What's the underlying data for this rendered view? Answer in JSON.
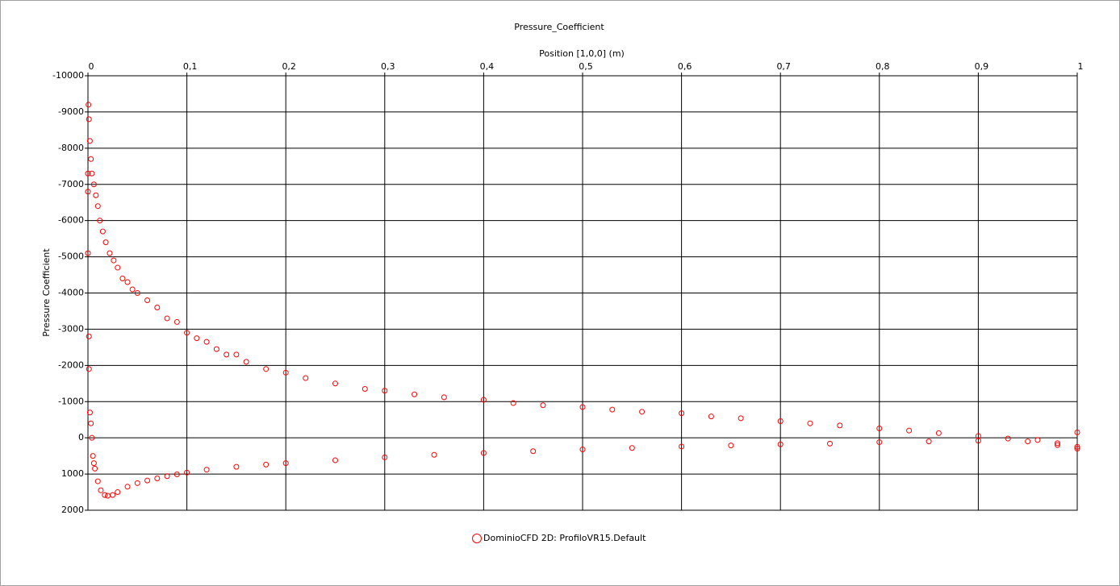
{
  "chart_data": {
    "type": "scatter",
    "title": "Pressure_Coefficient",
    "x_label": "Position [1,0,0] (m)",
    "y_label": "Pressure Coefficient",
    "xlim": [
      0,
      1
    ],
    "xticks": [
      0,
      {
        "value": 0.1,
        "label": "0,1"
      },
      {
        "value": 0.2,
        "label": "0,2"
      },
      {
        "value": 0.3,
        "label": "0,3"
      },
      {
        "value": 0.4,
        "label": "0,4"
      },
      {
        "value": 0.5,
        "label": "0,5"
      },
      {
        "value": 0.6,
        "label": "0,6"
      },
      {
        "value": 0.7,
        "label": "0,7"
      },
      {
        "value": 0.8,
        "label": "0,8"
      },
      {
        "value": 0.9,
        "label": "0,9"
      },
      1
    ],
    "ylim": [
      -10000,
      2000
    ],
    "y_inverted": true,
    "yticks": [
      -10000,
      -9000,
      -8000,
      -7000,
      -6000,
      -5000,
      -4000,
      -3000,
      -2000,
      -1000,
      0,
      1000,
      2000
    ],
    "grid": true,
    "legend": "bottom",
    "series": [
      {
        "name": "DominioCFD 2D: ProfiloVR15.Default",
        "color": "#ff0000",
        "x": [
          0.0005,
          0.001,
          0.002,
          0.003,
          0.004,
          0.006,
          0.008,
          0.01,
          0.012,
          0.015,
          0.018,
          0.022,
          0.026,
          0.03,
          0.035,
          0.04,
          0.045,
          0.05,
          0.06,
          0.07,
          0.08,
          0.09,
          0.1,
          0.11,
          0.12,
          0.13,
          0.14,
          0.15,
          0.16,
          0.18,
          0.2,
          0.22,
          0.25,
          0.28,
          0.3,
          0.33,
          0.36,
          0.4,
          0.43,
          0.46,
          0.5,
          0.53,
          0.56,
          0.6,
          0.63,
          0.66,
          0.7,
          0.73,
          0.76,
          0.8,
          0.83,
          0.86,
          0.9,
          0.93,
          0.96,
          0.98,
          1,
          0,
          0,
          0,
          0.001,
          0.001,
          0.002,
          0.003,
          0.004,
          0.005,
          0.006,
          0.007,
          0.01,
          0.013,
          0.017,
          0.02,
          0.025,
          0.03,
          0.04,
          0.05,
          0.06,
          0.07,
          0.08,
          0.09,
          0.1,
          0.12,
          0.15,
          0.18,
          0.2,
          0.25,
          0.3,
          0.35,
          0.4,
          0.45,
          0.5,
          0.55,
          0.6,
          0.65,
          0.7,
          0.75,
          0.8,
          0.85,
          0.9,
          0.95,
          0.98,
          1,
          1
        ],
        "values": [
          -9200,
          -8800,
          -8200,
          -7700,
          -7300,
          -7000,
          -6700,
          -6400,
          -6000,
          -5700,
          -5400,
          -5100,
          -4900,
          -4700,
          -4400,
          -4300,
          -4100,
          -4000,
          -3800,
          -3600,
          -3300,
          -3200,
          -2900,
          -2750,
          -2650,
          -2450,
          -2300,
          -2300,
          -2100,
          -1900,
          -1800,
          -1650,
          -1500,
          -1350,
          -1300,
          -1200,
          -1120,
          -1050,
          -960,
          -900,
          -850,
          -780,
          -720,
          -680,
          -590,
          -540,
          -460,
          -400,
          -340,
          -260,
          -200,
          -130,
          -50,
          20,
          60,
          150,
          250,
          -7300,
          -6800,
          -5100,
          -2800,
          -1900,
          -700,
          -400,
          0,
          500,
          700,
          850,
          1200,
          1450,
          1580,
          1600,
          1580,
          1500,
          1350,
          1250,
          1180,
          1120,
          1060,
          1010,
          960,
          880,
          800,
          740,
          700,
          620,
          540,
          470,
          420,
          370,
          320,
          280,
          240,
          210,
          180,
          160,
          120,
          100,
          80,
          100,
          200,
          300,
          -150
        ]
      }
    ]
  }
}
